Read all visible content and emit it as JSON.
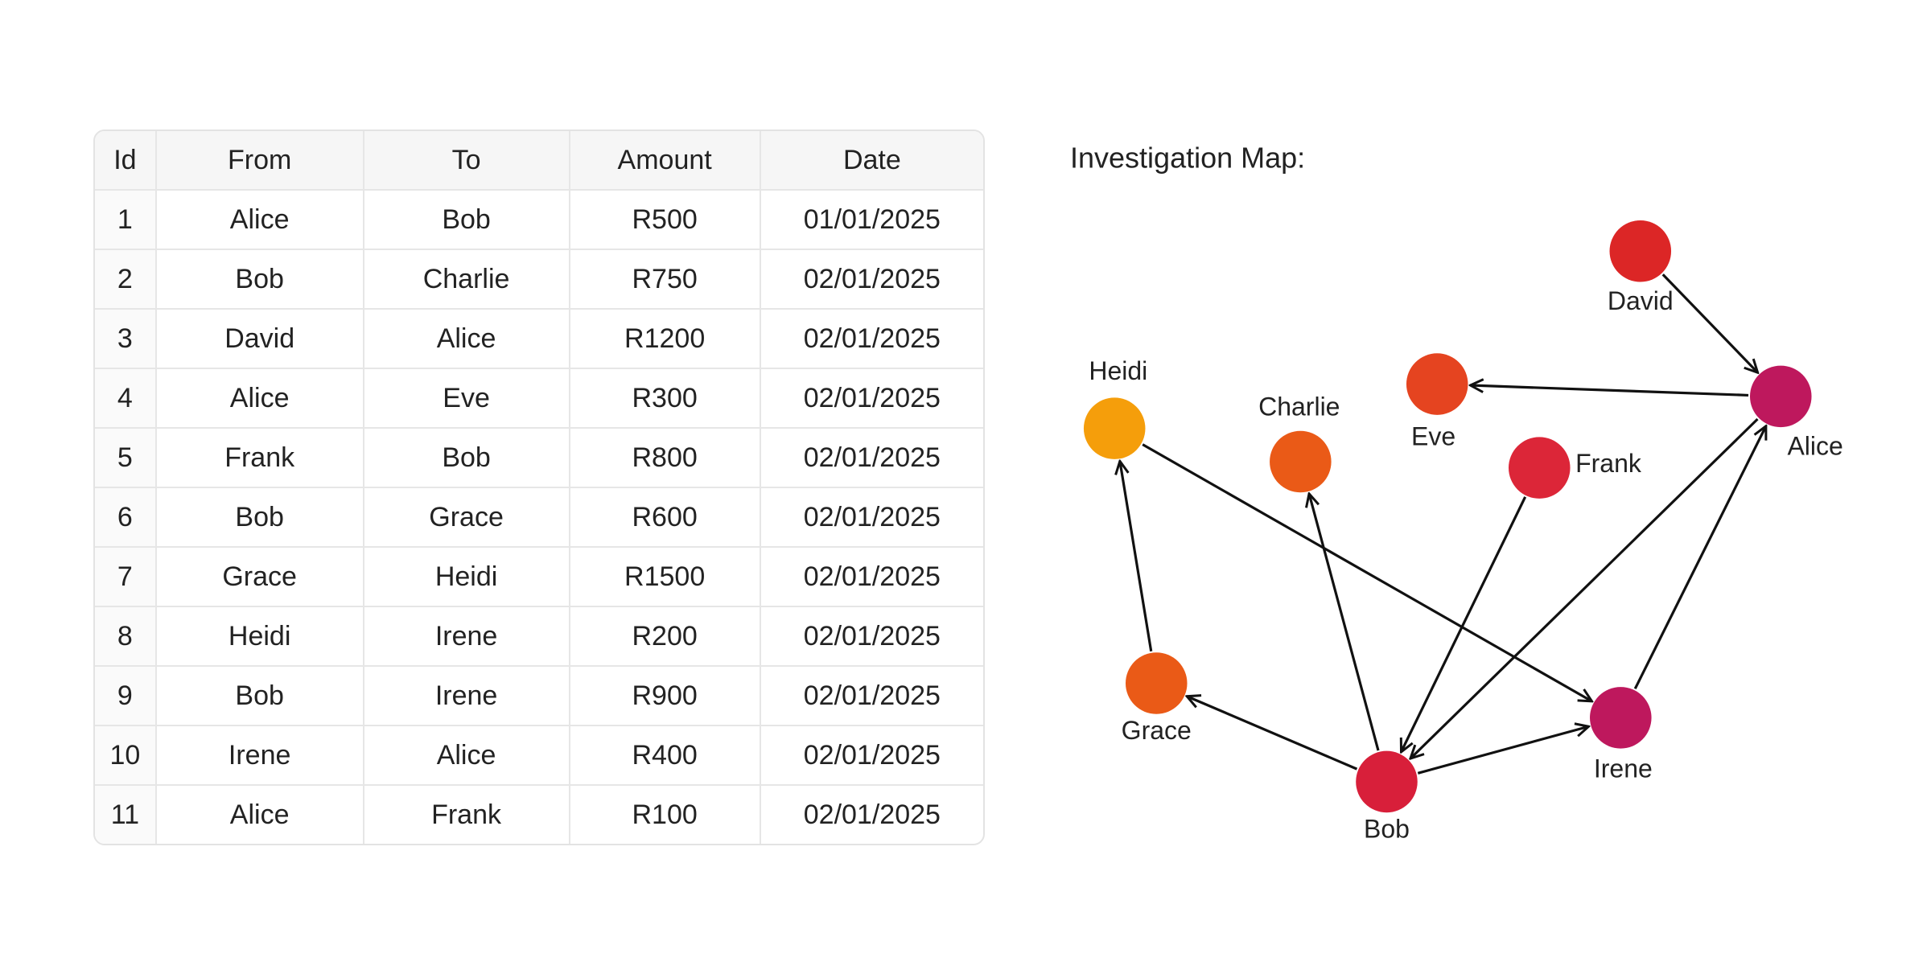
{
  "table": {
    "headers": [
      "Id",
      "From",
      "To",
      "Amount",
      "Date"
    ],
    "rows": [
      [
        "1",
        "Alice",
        "Bob",
        "R500",
        "01/01/2025"
      ],
      [
        "2",
        "Bob",
        "Charlie",
        "R750",
        "02/01/2025"
      ],
      [
        "3",
        "David",
        "Alice",
        "R1200",
        "02/01/2025"
      ],
      [
        "4",
        "Alice",
        "Eve",
        "R300",
        "02/01/2025"
      ],
      [
        "5",
        "Frank",
        "Bob",
        "R800",
        "02/01/2025"
      ],
      [
        "6",
        "Bob",
        "Grace",
        "R600",
        "02/01/2025"
      ],
      [
        "7",
        "Grace",
        "Heidi",
        "R1500",
        "02/01/2025"
      ],
      [
        "8",
        "Heidi",
        "Irene",
        "R200",
        "02/01/2025"
      ],
      [
        "9",
        "Bob",
        "Irene",
        "R900",
        "02/01/2025"
      ],
      [
        "10",
        "Irene",
        "Alice",
        "R400",
        "02/01/2025"
      ],
      [
        "11",
        "Alice",
        "Frank",
        "R100",
        "02/01/2025"
      ]
    ]
  },
  "map": {
    "title": "Investigation Map:",
    "nodes": [
      {
        "label": "David"
      },
      {
        "label": "Alice"
      },
      {
        "label": "Eve"
      },
      {
        "label": "Heidi"
      },
      {
        "label": "Charlie"
      },
      {
        "label": "Frank"
      },
      {
        "label": "Grace"
      },
      {
        "label": "Irene"
      },
      {
        "label": "Bob"
      }
    ]
  }
}
